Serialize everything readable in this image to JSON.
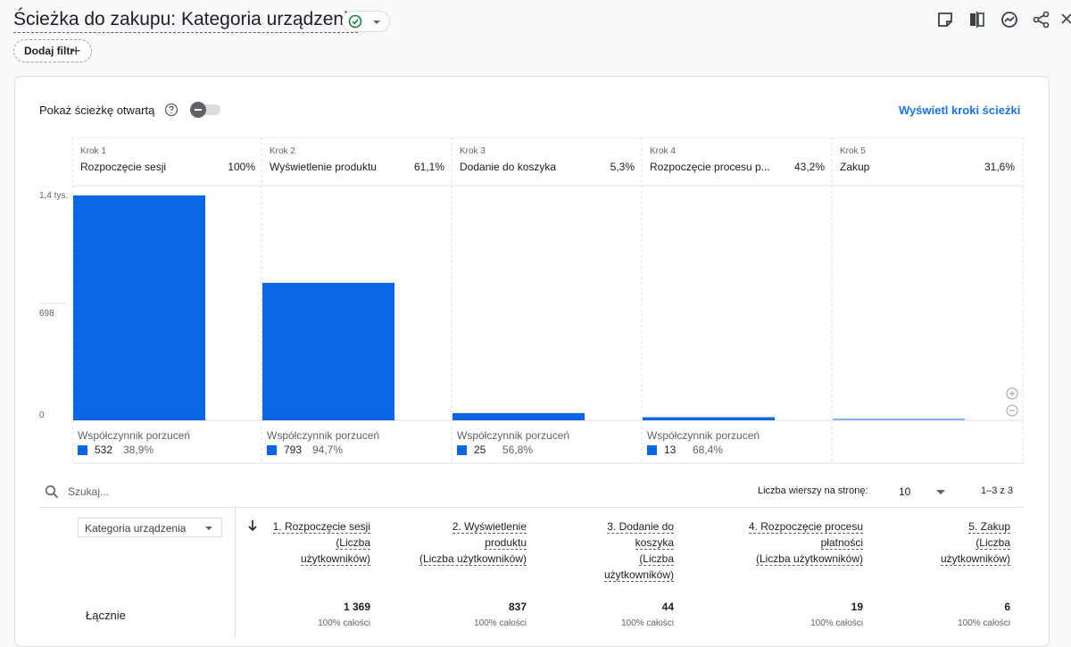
{
  "header": {
    "title": "Ścieżka do zakupu: Kategoria urządzenia",
    "add_filter_label": "Dodaj filtr"
  },
  "toolbar": {
    "icons": [
      "notes-icon",
      "compare-icon",
      "insights-icon",
      "share-icon",
      "expand-icon"
    ]
  },
  "controls": {
    "open_path_label": "Pokaż ścieżkę otwartą",
    "show_steps_link": "Wyświetl kroki ścieżki"
  },
  "colors": {
    "bar": "#0b66e4",
    "last_bar": "#8ab4f8",
    "link": "#1a73e8"
  },
  "chart_data": {
    "type": "bar",
    "y_ticks": [
      "1,4 tys.",
      "698",
      "0"
    ],
    "ylim": [
      0,
      1396
    ],
    "steps": [
      {
        "step_label": "Krok 1",
        "name": "Rozpoczęcie sesji",
        "percent": "100%",
        "value": 1369,
        "abandon_title": "Współczynnik porzuceń",
        "abandon_count": "532",
        "abandon_rate": "38,9%"
      },
      {
        "step_label": "Krok 2",
        "name": "Wyświetlenie produktu",
        "percent": "61,1%",
        "value": 837,
        "abandon_title": "Współczynnik porzuceń",
        "abandon_count": "793",
        "abandon_rate": "94,7%"
      },
      {
        "step_label": "Krok 3",
        "name": "Dodanie do koszyka",
        "percent": "5,3%",
        "value": 44,
        "abandon_title": "Współczynnik porzuceń",
        "abandon_count": "25",
        "abandon_rate": "56,8%"
      },
      {
        "step_label": "Krok 4",
        "name": "Rozpoczęcie procesu p...",
        "percent": "43,2%",
        "value": 19,
        "abandon_title": "Współczynnik porzuceń",
        "abandon_count": "13",
        "abandon_rate": "68,4%"
      },
      {
        "step_label": "Krok 5",
        "name": "Zakup",
        "percent": "31,6%",
        "value": 6
      }
    ]
  },
  "table": {
    "search_placeholder": "Szukaj...",
    "rows_per_page_label": "Liczba wierszy na stronę:",
    "rows_per_page_value": "10",
    "pagination": "1–3 z 3",
    "dimension_select": "Kategoria urządzenia",
    "columns": [
      {
        "lines": [
          "1. Rozpoczęcie sesji",
          "(Liczba",
          "użytkowników)"
        ],
        "total": "1 369",
        "sub": "100% całości"
      },
      {
        "lines": [
          "2. Wyświetlenie",
          "produktu",
          "(Liczba użytkowników)"
        ],
        "total": "837",
        "sub": "100% całości"
      },
      {
        "lines": [
          "3. Dodanie do",
          "koszyka",
          "(Liczba",
          "użytkowników)"
        ],
        "total": "44",
        "sub": "100% całości"
      },
      {
        "lines": [
          "4. Rozpoczęcie procesu",
          "płatności",
          "(Liczba użytkowników)"
        ],
        "total": "19",
        "sub": "100% całości"
      },
      {
        "lines": [
          "5. Zakup",
          "(Liczba",
          "użytkowników)"
        ],
        "total": "6",
        "sub": "100% całości"
      }
    ],
    "total_row_label": "Łącznie"
  }
}
